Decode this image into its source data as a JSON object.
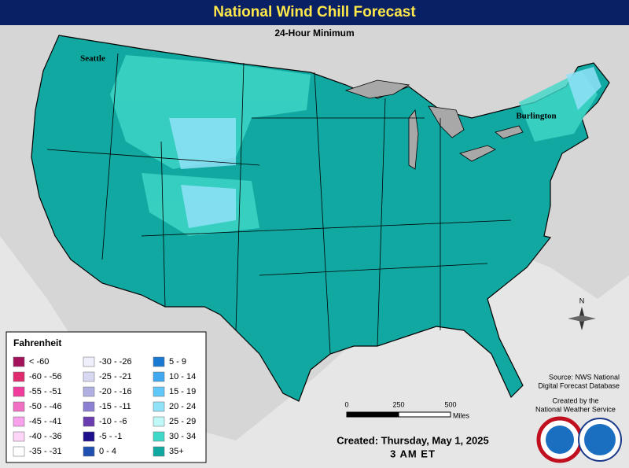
{
  "header": {
    "title": "National Wind Chill Forecast",
    "subtitle": "24-Hour Minimum"
  },
  "cities": [
    "Seattle",
    "Burlington"
  ],
  "legend": {
    "title": "Fahrenheit",
    "entries": [
      {
        "label": "< -60",
        "color": "#a3125a"
      },
      {
        "label": "-60 - -56",
        "color": "#e02c6e"
      },
      {
        "label": "-55 - -51",
        "color": "#f03c9c"
      },
      {
        "label": "-50 - -46",
        "color": "#f070c4"
      },
      {
        "label": "-45 - -41",
        "color": "#f8a0ec"
      },
      {
        "label": "-40 - -36",
        "color": "#fcd4f6"
      },
      {
        "label": "-35 - -31",
        "color": "#ffffff"
      },
      {
        "label": "-30 - -26",
        "color": "#efeffb"
      },
      {
        "label": "-25 - -21",
        "color": "#d8d8f2"
      },
      {
        "label": "-20 - -16",
        "color": "#b0b0e2"
      },
      {
        "label": "-15 - -11",
        "color": "#8c80d2"
      },
      {
        "label": "-10 - -6",
        "color": "#6a3cb0"
      },
      {
        "label": "-5 - -1",
        "color": "#1e108c"
      },
      {
        "label": "0 - 4",
        "color": "#2050b0"
      },
      {
        "label": "5 - 9",
        "color": "#1878d2"
      },
      {
        "label": "10 - 14",
        "color": "#40a8f0"
      },
      {
        "label": "15 - 19",
        "color": "#60c8f8"
      },
      {
        "label": "20 - 24",
        "color": "#90e2f8"
      },
      {
        "label": "25 - 29",
        "color": "#c0f8f8"
      },
      {
        "label": "30 - 34",
        "color": "#40d8c8"
      },
      {
        "label": "35+",
        "color": "#10a8a0"
      }
    ]
  },
  "scale": {
    "ticks": [
      "0",
      "250",
      "500"
    ],
    "unit": "Miles"
  },
  "source": [
    "Source: NWS National",
    "Digital Forecast Database"
  ],
  "credit": [
    "Created by the",
    "National Weather Service"
  ],
  "created": [
    "Created: Thursday, May 1, 2025",
    "3 AM ET"
  ],
  "compass": "N"
}
